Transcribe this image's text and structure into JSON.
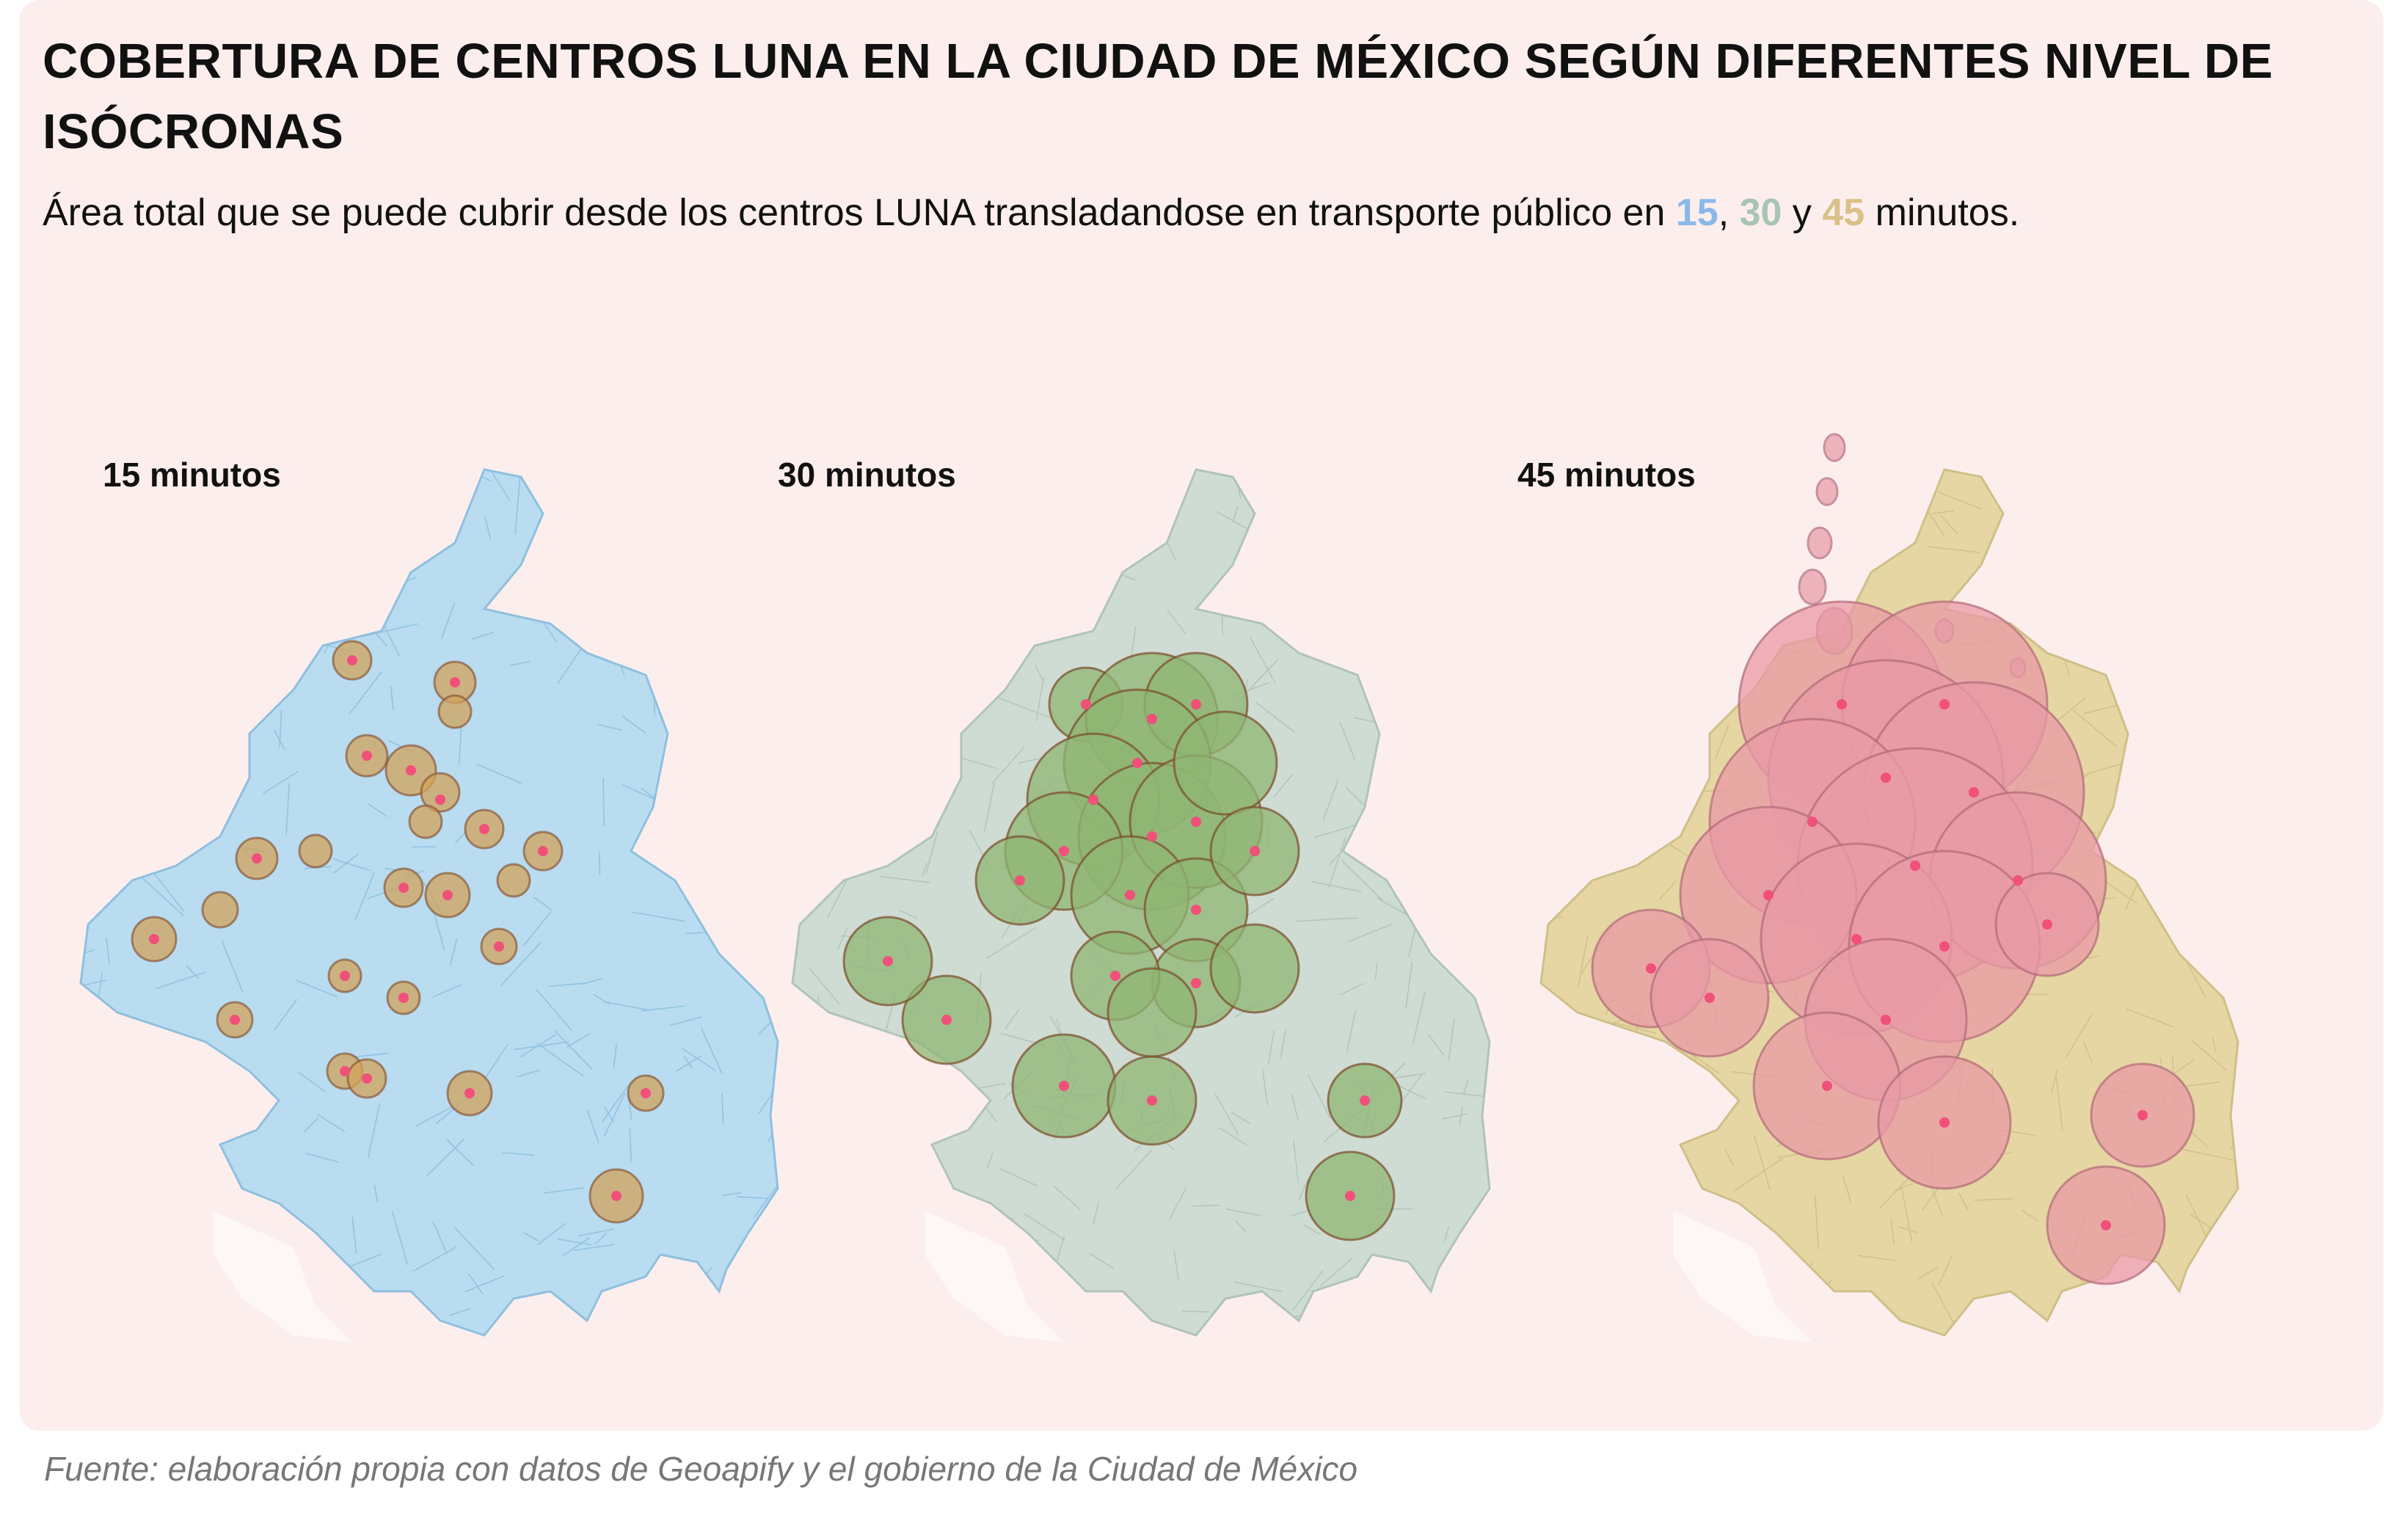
{
  "title": "COBERTURA DE CENTROS LUNA EN LA CIUDAD DE MÉXICO SEGÚN DIFERENTES NIVEL DE ISÓCRONAS",
  "subtitle": {
    "prefix": "Área total que se puede cubrir desde los centros LUNA transladandose en transporte público en ",
    "v15": "15",
    "sep1": ", ",
    "v30": "30",
    "sep2": " y ",
    "v45": "45",
    "suffix": " minutos."
  },
  "maps": [
    {
      "label": "15 minutos",
      "base_color": "#b9dcf1",
      "line_color": "#8fc0de",
      "iso_color": "#d2a35a",
      "iso_stroke": "#8a5a3a"
    },
    {
      "label": "30 minutos",
      "base_color": "#cfdcd3",
      "line_color": "#b0c4b8",
      "iso_color": "#8fb573",
      "iso_stroke": "#7a4a2a"
    },
    {
      "label": "45 minutos",
      "base_color": "#e6d6a3",
      "line_color": "#cfbf88",
      "iso_color": "#e89aa6",
      "iso_stroke": "#b06a78"
    }
  ],
  "center_color": "#f0507a",
  "source": "Fuente: elaboración propia con datos de Geoapify y el gobierno de la Ciudad de México"
}
